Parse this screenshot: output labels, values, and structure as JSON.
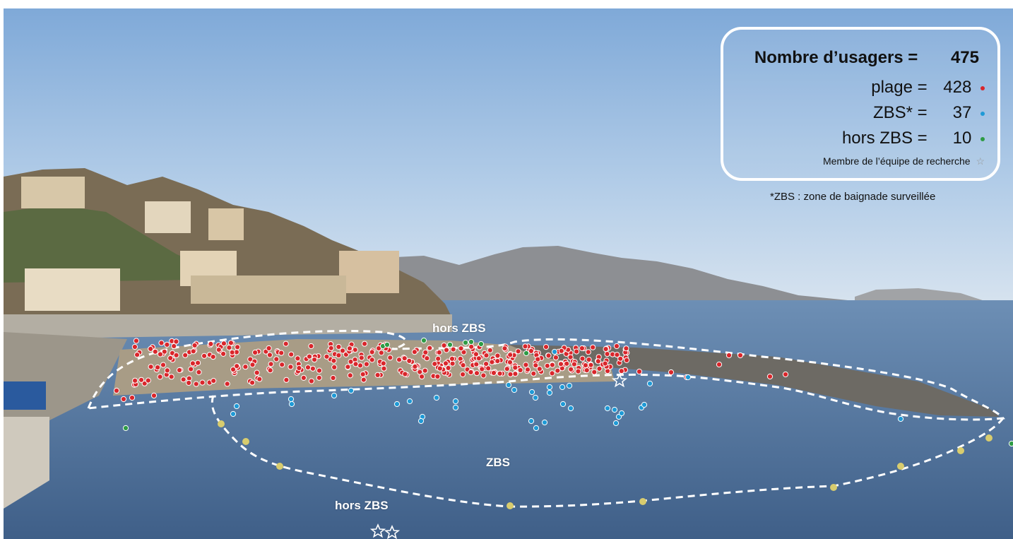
{
  "legend": {
    "total_label": "Nombre d’usagers =",
    "total_value": "475",
    "rows": [
      {
        "label": "plage =",
        "value": "428",
        "color": "#d9262b"
      },
      {
        "label": "ZBS* =",
        "value": "37",
        "color": "#1f9ad6"
      },
      {
        "label": "hors ZBS =",
        "value": "10",
        "color": "#2e9b45"
      }
    ],
    "member_label": "Membre de l’équipe de recherche",
    "member_icon": "star-icon"
  },
  "footnote": "*ZBS : zone de baignade surveillée",
  "scene_labels": {
    "hors_zbs_top": "hors ZBS",
    "zbs": "ZBS",
    "hors_zbs_bottom": "hors ZBS"
  },
  "colors": {
    "sky_top": "#7fa9d8",
    "sea": "#4d6f98",
    "plage_dot": "#d9262b",
    "zbs_dot": "#1f9ad6",
    "hors_dot": "#2e9b45"
  }
}
